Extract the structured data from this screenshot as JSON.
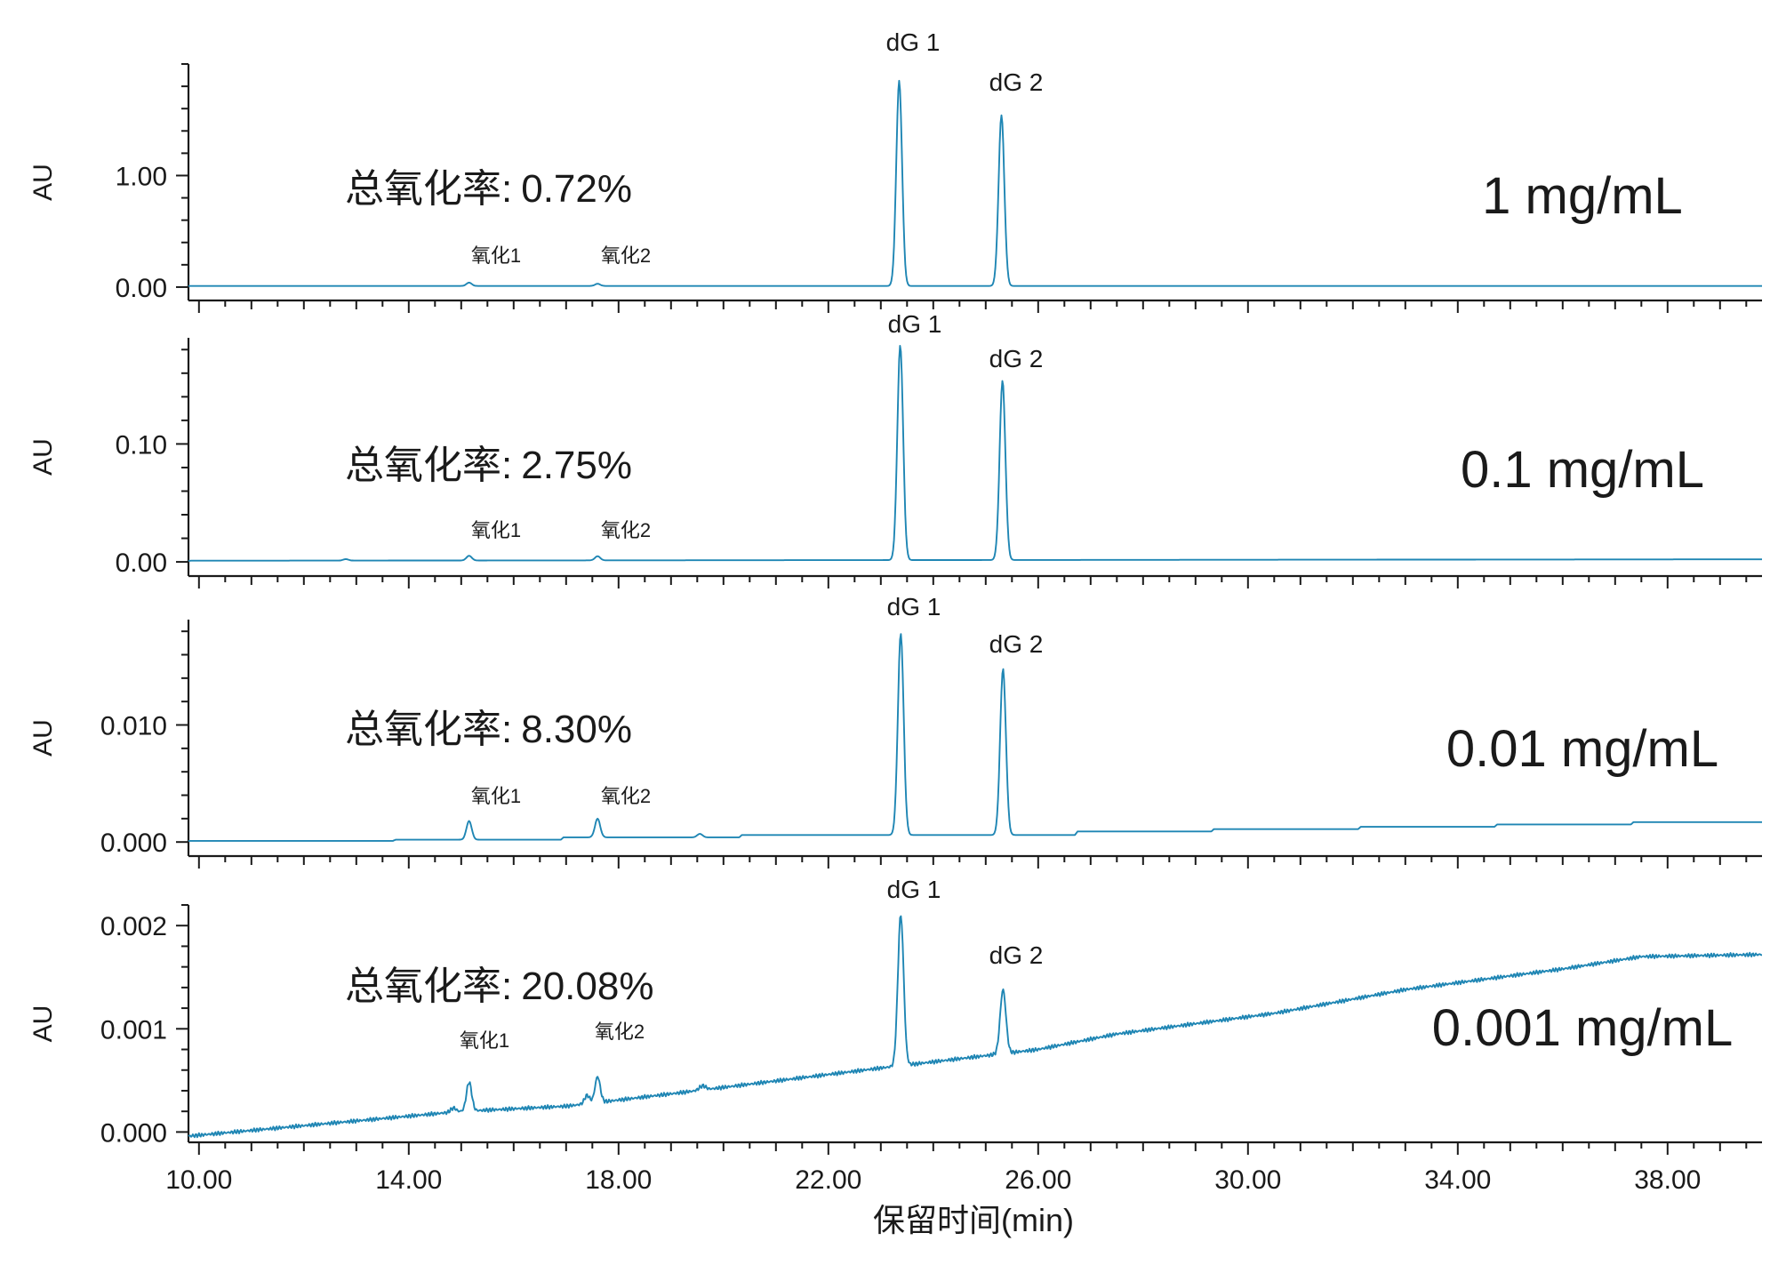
{
  "chart_data": {
    "type": "line",
    "xlabel": "保留时间(min)",
    "xlim": [
      9.8,
      39.8
    ],
    "xticks": [
      "10.00",
      "14.00",
      "18.00",
      "22.00",
      "26.00",
      "30.00",
      "34.00",
      "38.00"
    ],
    "color": "#1f86b4",
    "panels": [
      {
        "concentration": "1 mg/mL",
        "rate_label": "总氧化率:",
        "rate": "0.72%",
        "ylabel": "AU",
        "ylim": [
          -0.12,
          2.0
        ],
        "yticks": [
          {
            "label": "0.00",
            "v": 0.0
          },
          {
            "label": "1.00",
            "v": 1.0
          }
        ],
        "peak_labels": [
          "氧化1",
          "氧化2",
          "dG 1",
          "dG 2"
        ],
        "peaks": [
          {
            "t": 15.15,
            "h": 0.03,
            "w": 0.05
          },
          {
            "t": 17.6,
            "h": 0.02,
            "w": 0.05
          },
          {
            "t": 23.35,
            "h": 1.84,
            "w": 0.055
          },
          {
            "t": 25.3,
            "h": 1.53,
            "w": 0.055
          }
        ],
        "baseline": [
          [
            9.8,
            0.01
          ],
          [
            39.8,
            0.01
          ]
        ]
      },
      {
        "concentration": "0.1 mg/mL",
        "rate_label": "总氧化率:",
        "rate": "2.75%",
        "ylabel": "AU",
        "ylim": [
          -0.012,
          0.19
        ],
        "yticks": [
          {
            "label": "0.00",
            "v": 0.0
          },
          {
            "label": "0.10",
            "v": 0.1
          }
        ],
        "peak_labels": [
          "氧化1",
          "氧化2",
          "dG 1",
          "dG 2"
        ],
        "peaks": [
          {
            "t": 12.8,
            "h": 0.0012,
            "w": 0.05
          },
          {
            "t": 15.15,
            "h": 0.004,
            "w": 0.05
          },
          {
            "t": 17.6,
            "h": 0.0035,
            "w": 0.05
          },
          {
            "t": 23.37,
            "h": 0.182,
            "w": 0.055
          },
          {
            "t": 25.32,
            "h": 0.152,
            "w": 0.055
          }
        ],
        "baseline": [
          [
            9.8,
            0.001
          ],
          [
            39.8,
            0.0022
          ]
        ]
      },
      {
        "concentration": "0.01 mg/mL",
        "rate_label": "总氧化率:",
        "rate": "8.30%",
        "ylabel": "AU",
        "ylim": [
          -0.0012,
          0.019
        ],
        "yticks": [
          {
            "label": "0.000",
            "v": 0.0
          },
          {
            "label": "0.010",
            "v": 0.01
          }
        ],
        "peak_labels": [
          "氧化1",
          "氧化2",
          "dG 1",
          "dG 2"
        ],
        "peaks": [
          {
            "t": 15.15,
            "h": 0.0016,
            "w": 0.05
          },
          {
            "t": 17.6,
            "h": 0.0016,
            "w": 0.05
          },
          {
            "t": 19.55,
            "h": 0.0003,
            "w": 0.05
          },
          {
            "t": 23.38,
            "h": 0.0172,
            "w": 0.055
          },
          {
            "t": 25.33,
            "h": 0.0142,
            "w": 0.055
          }
        ],
        "baseline": [
          [
            9.8,
            0.0001
          ],
          [
            13.7,
            0.0001
          ],
          [
            13.75,
            0.0002
          ],
          [
            16.9,
            0.0002
          ],
          [
            16.95,
            0.0004
          ],
          [
            20.3,
            0.0004
          ],
          [
            20.35,
            0.0006
          ],
          [
            26.7,
            0.0006
          ],
          [
            26.75,
            0.0009
          ],
          [
            29.3,
            0.0009
          ],
          [
            29.35,
            0.0011
          ],
          [
            32.1,
            0.0011
          ],
          [
            32.15,
            0.0013
          ],
          [
            34.7,
            0.0013
          ],
          [
            34.75,
            0.0015
          ],
          [
            37.3,
            0.0015
          ],
          [
            37.35,
            0.0017
          ],
          [
            39.8,
            0.0017
          ]
        ]
      },
      {
        "concentration": "0.001 mg/mL",
        "rate_label": "总氧化率:",
        "rate": "20.08%",
        "ylabel": "AU",
        "ylim": [
          -0.0001,
          0.0022
        ],
        "yticks": [
          {
            "label": "0.000",
            "v": 0.0
          },
          {
            "label": "0.001",
            "v": 0.001
          },
          {
            "label": "0.002",
            "v": 0.002
          }
        ],
        "peak_labels": [
          "氧化1",
          "氧化2",
          "dG 1",
          "dG 2"
        ],
        "peaks": [
          {
            "t": 14.85,
            "h": 4e-05,
            "w": 0.05
          },
          {
            "t": 15.15,
            "h": 0.00028,
            "w": 0.05
          },
          {
            "t": 17.4,
            "h": 8e-05,
            "w": 0.05
          },
          {
            "t": 17.6,
            "h": 0.00025,
            "w": 0.05
          },
          {
            "t": 19.6,
            "h": 4e-05,
            "w": 0.06
          },
          {
            "t": 23.38,
            "h": 0.00146,
            "w": 0.055
          },
          {
            "t": 25.33,
            "h": 0.00062,
            "w": 0.055
          }
        ],
        "baseline": [
          [
            9.8,
            -4e-05
          ],
          [
            15.0,
            0.0002
          ],
          [
            17.0,
            0.00025
          ],
          [
            19.0,
            0.00037
          ],
          [
            23.0,
            0.00062
          ],
          [
            26.0,
            0.0008
          ],
          [
            27.5,
            0.00095
          ],
          [
            30.5,
            0.00115
          ],
          [
            33.0,
            0.00138
          ],
          [
            36.0,
            0.00158
          ],
          [
            37.5,
            0.0017
          ],
          [
            39.8,
            0.00172
          ]
        ]
      }
    ]
  }
}
